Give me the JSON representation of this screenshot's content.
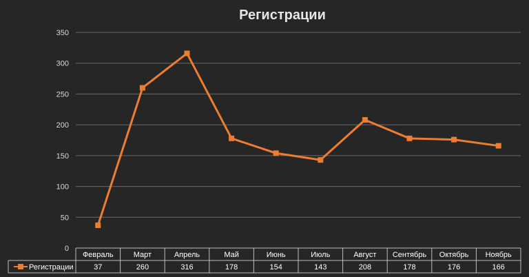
{
  "chart_data": {
    "type": "line",
    "title": "Регистрации",
    "categories": [
      "Февраль",
      "Март",
      "Апрель",
      "Май",
      "Июнь",
      "Июль",
      "Август",
      "Сентябрь",
      "Октябрь",
      "Ноябрь"
    ],
    "series": [
      {
        "name": "Регистрации",
        "values": [
          37,
          260,
          316,
          178,
          154,
          143,
          208,
          178,
          176,
          166
        ],
        "color": "#ED7D31",
        "marker": "square"
      }
    ],
    "ylim": [
      0,
      350
    ],
    "yticks": [
      0,
      50,
      100,
      150,
      200,
      250,
      300,
      350
    ],
    "grid": true,
    "data_table": true,
    "legend_placement": "data-table-left"
  },
  "colors": {
    "background": "#262626",
    "gridline": "#6a6a6a",
    "text": "#d9d9d9"
  }
}
